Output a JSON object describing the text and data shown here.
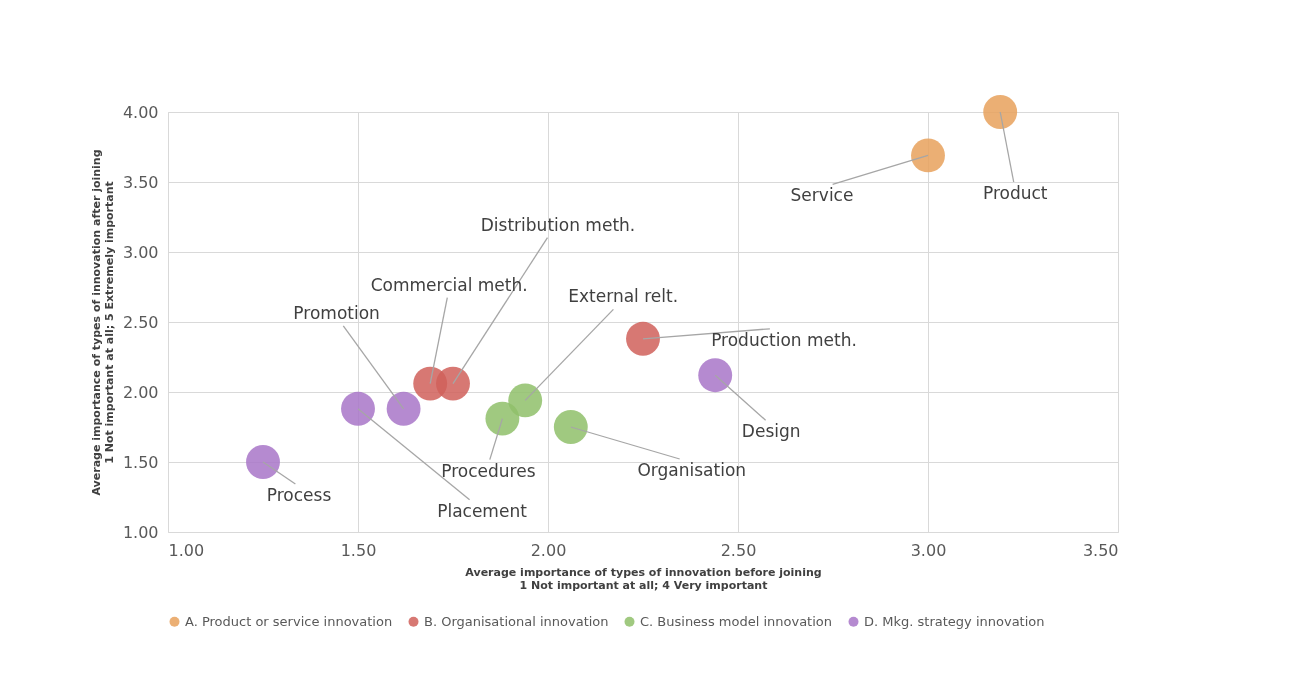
{
  "chart_data": {
    "type": "scatter",
    "xlabel": "Average importance of types of innovation before joining\n1 Not important at all; 4 Very important",
    "ylabel": "Average importance of types of innovation after joining\n1 Not important at all; 5 Extremely important",
    "xlim": [
      1.0,
      3.5
    ],
    "xticks": [
      {
        "value": 1,
        "label": "1.00"
      },
      {
        "value": 1.5,
        "label": "1.50"
      },
      {
        "value": 2,
        "label": "2.00"
      },
      {
        "value": 2.5,
        "label": "2.50"
      },
      {
        "value": 3,
        "label": "3.00"
      },
      {
        "value": 3.5,
        "label": "3.50"
      }
    ],
    "ylim": [
      1.0,
      4.0
    ],
    "yticks": [
      {
        "value": 1,
        "label": "1.00"
      },
      {
        "value": 1.5,
        "label": "1.50"
      },
      {
        "value": 2,
        "label": "2.00"
      },
      {
        "value": 2.5,
        "label": "2.50"
      },
      {
        "value": 3,
        "label": "3.00"
      },
      {
        "value": 3.5,
        "label": "3.50"
      },
      {
        "value": 4,
        "label": "4.00"
      }
    ],
    "grid": true,
    "legend": "bottom",
    "marker": "circle",
    "series": [
      {
        "name": "A. Product or service innovation",
        "color": "#e8a15c",
        "x": [
          3.0,
          3.19
        ],
        "values": [
          3.69,
          4.0
        ]
      },
      {
        "name": "B. Organisational innovation",
        "color": "#d0605a",
        "x": [
          1.69,
          1.75,
          2.25
        ],
        "values": [
          2.06,
          2.06,
          2.38
        ]
      },
      {
        "name": "C. Business model innovation",
        "color": "#8fbf6a",
        "x": [
          1.88,
          1.94,
          2.06
        ],
        "values": [
          1.81,
          1.94,
          1.75
        ]
      },
      {
        "name": "D. Mkg. strategy innovation",
        "color": "#a875c8",
        "x": [
          1.25,
          1.5,
          1.62,
          2.44
        ],
        "values": [
          1.5,
          1.88,
          1.88,
          2.12
        ]
      }
    ],
    "annotations": [
      {
        "text": "Service",
        "x": 3.0,
        "y": 3.69
      },
      {
        "text": "Product",
        "x": 3.19,
        "y": 4.0
      },
      {
        "text": "Commercial meth.",
        "x": 1.69,
        "y": 2.06
      },
      {
        "text": "Distribution meth.",
        "x": 1.75,
        "y": 2.06
      },
      {
        "text": "Production meth.",
        "x": 2.25,
        "y": 2.38
      },
      {
        "text": "Procedures",
        "x": 1.88,
        "y": 1.81
      },
      {
        "text": "External relt.",
        "x": 1.94,
        "y": 1.94
      },
      {
        "text": "Organisation",
        "x": 2.06,
        "y": 1.75
      },
      {
        "text": "Process",
        "x": 1.25,
        "y": 1.5
      },
      {
        "text": "Placement",
        "x": 1.5,
        "y": 1.88
      },
      {
        "text": "Promotion",
        "x": 1.62,
        "y": 1.88
      },
      {
        "text": "Design",
        "x": 2.44,
        "y": 2.12
      }
    ]
  }
}
